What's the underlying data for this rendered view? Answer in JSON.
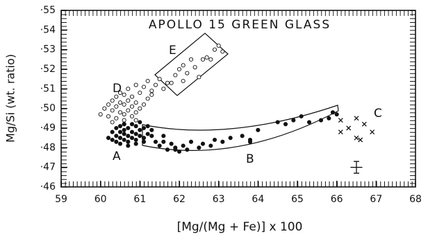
{
  "chart_data": {
    "type": "scatter",
    "title": "APOLLO 15 GREEN GLASS",
    "x_label": "[Mg/(Mg + Fe)] x 100",
    "y_label": "Mg/Si (wt. ratio)",
    "xlim": [
      59,
      68
    ],
    "xticks": [
      59,
      60,
      61,
      62,
      63,
      64,
      65,
      66,
      67,
      68
    ],
    "ylim": [
      0.46,
      0.55
    ],
    "yticks": [
      {
        "value": 0.46,
        "label": "·46"
      },
      {
        "value": 0.47,
        "label": "·47"
      },
      {
        "value": 0.48,
        "label": "·48"
      },
      {
        "value": 0.49,
        "label": "·49"
      },
      {
        "value": 0.5,
        "label": "·50"
      },
      {
        "value": 0.51,
        "label": "·51"
      },
      {
        "value": 0.52,
        "label": "·52"
      },
      {
        "value": 0.53,
        "label": "·53"
      },
      {
        "value": 0.54,
        "label": "·54"
      },
      {
        "value": 0.55,
        "label": "·55"
      }
    ],
    "series": [
      {
        "name": "D",
        "marker": "open",
        "color": "#111",
        "x": [
          60.0,
          60.1,
          60.2,
          60.2,
          60.3,
          60.3,
          60.4,
          60.4,
          60.4,
          60.5,
          60.5,
          60.5,
          60.6,
          60.6,
          60.6,
          60.6,
          60.7,
          60.7,
          60.7,
          60.8,
          60.8,
          60.8,
          60.9,
          60.9,
          60.9,
          61.0,
          61.0,
          61.1,
          61.1,
          61.2,
          61.2,
          61.3,
          61.4,
          61.5,
          61.6,
          61.7,
          60.3,
          60.6,
          60.9,
          61.3
        ],
        "y": [
          0.497,
          0.5,
          0.502,
          0.496,
          0.499,
          0.504,
          0.495,
          0.501,
          0.506,
          0.498,
          0.503,
          0.508,
          0.494,
          0.497,
          0.502,
          0.507,
          0.499,
          0.504,
          0.51,
          0.496,
          0.501,
          0.506,
          0.498,
          0.503,
          0.512,
          0.5,
          0.508,
          0.502,
          0.511,
          0.505,
          0.514,
          0.509,
          0.512,
          0.515,
          0.51,
          0.513,
          0.493,
          0.492,
          0.494,
          0.507
        ]
      },
      {
        "name": "E",
        "marker": "open",
        "color": "#111",
        "x": [
          62.0,
          62.1,
          62.3,
          62.4,
          62.6,
          61.9,
          62.2,
          62.5,
          62.7,
          62.8,
          62.9,
          63.0,
          63.1,
          61.8,
          62.1
        ],
        "y": [
          0.52,
          0.522,
          0.525,
          0.521,
          0.525,
          0.517,
          0.518,
          0.516,
          0.526,
          0.525,
          0.53,
          0.532,
          0.529,
          0.513,
          0.514
        ]
      },
      {
        "name": "A",
        "marker": "filled",
        "color": "#111",
        "x": [
          60.2,
          60.3,
          60.3,
          60.4,
          60.4,
          60.4,
          60.5,
          60.5,
          60.5,
          60.6,
          60.6,
          60.6,
          60.6,
          60.7,
          60.7,
          60.7,
          60.8,
          60.8,
          60.8,
          60.9,
          60.9,
          60.9,
          61.0,
          61.0,
          61.0,
          61.1,
          61.1,
          61.2,
          61.2,
          61.3,
          61.3,
          61.4,
          60.5,
          60.7,
          60.9,
          61.1
        ],
        "y": [
          0.485,
          0.484,
          0.488,
          0.483,
          0.486,
          0.49,
          0.485,
          0.488,
          0.491,
          0.484,
          0.487,
          0.489,
          0.492,
          0.483,
          0.486,
          0.49,
          0.485,
          0.488,
          0.492,
          0.484,
          0.487,
          0.491,
          0.486,
          0.489,
          0.493,
          0.485,
          0.49,
          0.487,
          0.491,
          0.486,
          0.489,
          0.483,
          0.482,
          0.481,
          0.482,
          0.483
        ]
      },
      {
        "name": "B",
        "marker": "filled",
        "color": "#111",
        "x": [
          61.5,
          61.6,
          61.7,
          61.8,
          61.9,
          62.0,
          62.1,
          62.2,
          62.3,
          62.5,
          62.6,
          62.8,
          62.9,
          63.1,
          63.3,
          63.6,
          63.8,
          63.8,
          64.0,
          64.5,
          64.7,
          64.9,
          65.1,
          65.3,
          65.6,
          65.8,
          65.9,
          66.0,
          61.6,
          61.9
        ],
        "y": [
          0.481,
          0.483,
          0.479,
          0.482,
          0.48,
          0.478,
          0.481,
          0.479,
          0.483,
          0.48,
          0.482,
          0.481,
          0.484,
          0.483,
          0.485,
          0.486,
          0.484,
          0.483,
          0.489,
          0.493,
          0.492,
          0.494,
          0.496,
          0.493,
          0.494,
          0.495,
          0.498,
          0.497,
          0.486,
          0.479
        ]
      },
      {
        "name": "C",
        "marker": "cross",
        "color": "#111",
        "x": [
          66.1,
          66.3,
          66.5,
          66.6,
          66.9,
          66.5,
          66.1,
          66.7
        ],
        "y": [
          0.488,
          0.49,
          0.485,
          0.484,
          0.488,
          0.495,
          0.494,
          0.492
        ]
      }
    ],
    "error_bar": {
      "x": 66.5,
      "y": 0.47,
      "xerr": 0.15,
      "yerr": 0.003
    }
  }
}
